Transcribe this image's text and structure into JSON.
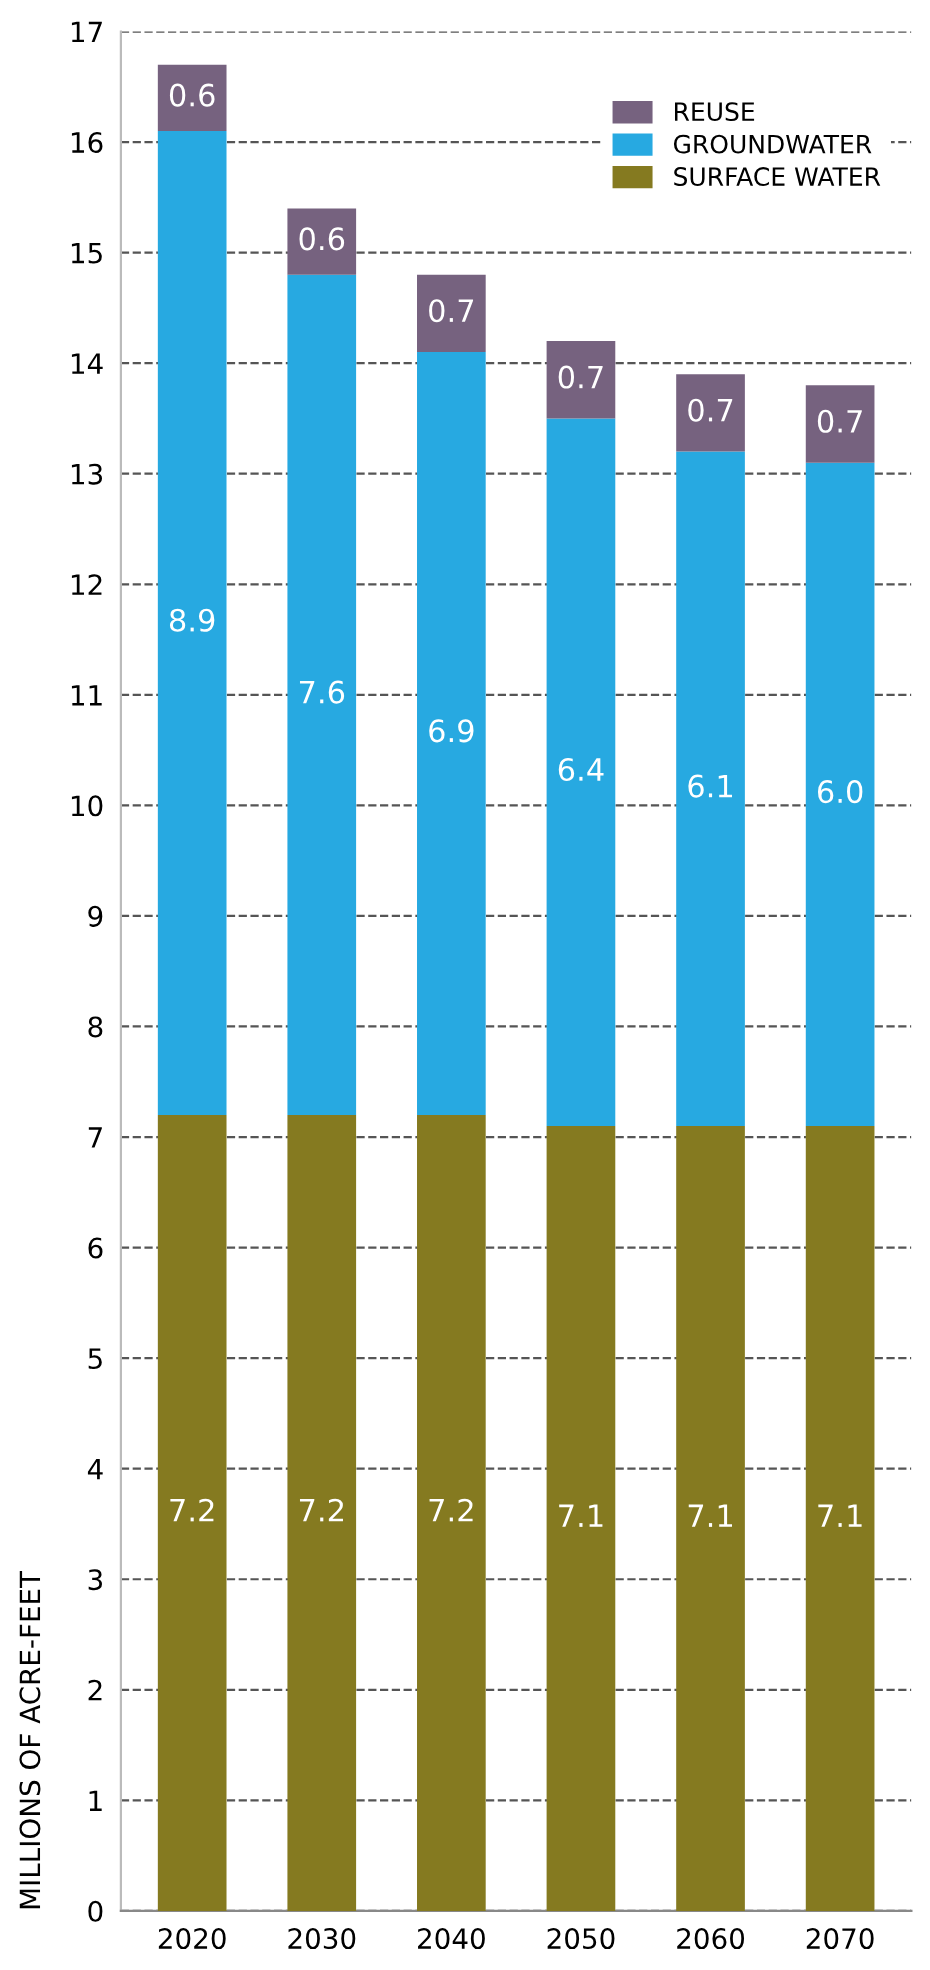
{
  "chart_data": {
    "type": "bar",
    "stacked": true,
    "ylabel": "MILLIONS OF ACRE-FEET",
    "categories": [
      "2020",
      "2030",
      "2040",
      "2050",
      "2060",
      "2070"
    ],
    "series": [
      {
        "name": "SURFACE WATER",
        "color": "#857a20",
        "values": [
          7.2,
          7.2,
          7.2,
          7.1,
          7.1,
          7.1
        ],
        "value_labels": [
          "7.2",
          "7.2",
          "7.2",
          "7.1",
          "7.1",
          "7.1"
        ]
      },
      {
        "name": "GROUNDWATER",
        "color": "#27a9e1",
        "values": [
          8.9,
          7.6,
          6.9,
          6.4,
          6.1,
          6.0
        ],
        "value_labels": [
          "8.9",
          "7.6",
          "6.9",
          "6.4",
          "6.1",
          "6.0"
        ]
      },
      {
        "name": "REUSE",
        "color": "#76627f",
        "values": [
          0.6,
          0.6,
          0.7,
          0.7,
          0.7,
          0.7
        ],
        "value_labels": [
          "0.6",
          "0.6",
          "0.7",
          "0.7",
          "0.7",
          "0.7"
        ]
      }
    ],
    "ylim": [
      0,
      17
    ],
    "yticks": [
      0,
      1,
      2,
      3,
      4,
      5,
      6,
      7,
      8,
      9,
      10,
      11,
      12,
      13,
      14,
      15,
      16,
      17
    ],
    "grid": "y",
    "legend": "top right"
  }
}
